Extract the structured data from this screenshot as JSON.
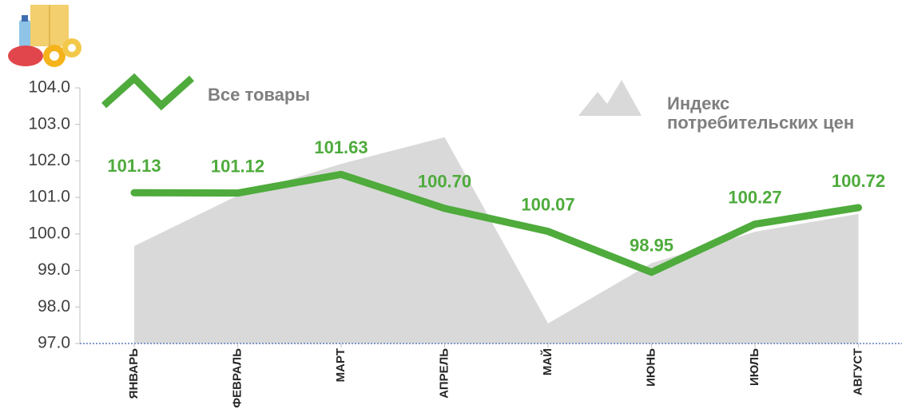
{
  "chart_data": {
    "type": "line",
    "categories": [
      "ЯНВАРЬ",
      "ФЕВРАЛЬ",
      "МАРТ",
      "АПРЕЛЬ",
      "МАЙ",
      "ИЮНЬ",
      "ИЮЛЬ",
      "АВГУСТ"
    ],
    "series": [
      {
        "name": "Индекс потребительских цен",
        "type": "area",
        "color": "#d9d9d9",
        "values": [
          99.67,
          101.05,
          101.92,
          102.65,
          97.55,
          99.2,
          100.06,
          100.55
        ]
      },
      {
        "name": "Все товары",
        "type": "line",
        "color": "#4eab3c",
        "values": [
          101.13,
          101.12,
          101.63,
          100.7,
          100.07,
          98.95,
          100.27,
          100.72
        ],
        "value_labels": [
          "101.13",
          "101.12",
          "101.63",
          "100.70",
          "100.07",
          "98.95",
          "100.27",
          "100.72"
        ]
      }
    ],
    "ylim": [
      97.0,
      104.0
    ],
    "yticks": [
      {
        "value": 97,
        "label": "97.0"
      },
      {
        "value": 98,
        "label": "98.0"
      },
      {
        "value": 99,
        "label": "99.0"
      },
      {
        "value": 100,
        "label": "100.0"
      },
      {
        "value": 101,
        "label": "101.0"
      },
      {
        "value": 102,
        "label": "102.0"
      },
      {
        "value": 103,
        "label": "103.0"
      },
      {
        "value": 104,
        "label": "104.0"
      }
    ]
  }
}
